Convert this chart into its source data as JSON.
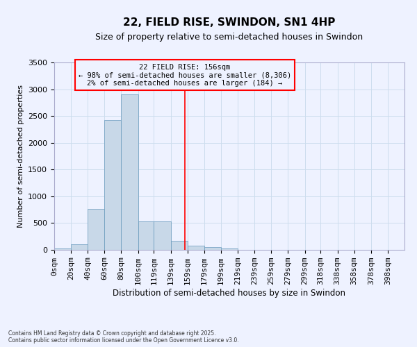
{
  "title1": "22, FIELD RISE, SWINDON, SN1 4HP",
  "title2": "Size of property relative to semi-detached houses in Swindon",
  "xlabel": "Distribution of semi-detached houses by size in Swindon",
  "ylabel": "Number of semi-detached properties",
  "property_size": 156,
  "annotation_line1": "22 FIELD RISE: 156sqm",
  "annotation_line2": "← 98% of semi-detached houses are smaller (8,306)",
  "annotation_line3": "2% of semi-detached houses are larger (184) →",
  "bin_labels": [
    "0sqm",
    "20sqm",
    "40sqm",
    "60sqm",
    "80sqm",
    "100sqm",
    "119sqm",
    "139sqm",
    "159sqm",
    "179sqm",
    "199sqm",
    "219sqm",
    "239sqm",
    "259sqm",
    "279sqm",
    "299sqm",
    "318sqm",
    "338sqm",
    "358sqm",
    "378sqm",
    "398sqm"
  ],
  "bin_edges": [
    0,
    20,
    40,
    60,
    80,
    100,
    119,
    139,
    159,
    179,
    199,
    219,
    239,
    259,
    279,
    299,
    318,
    338,
    358,
    378,
    398
  ],
  "bar_heights": [
    30,
    110,
    770,
    2420,
    2900,
    530,
    530,
    175,
    80,
    55,
    20,
    5,
    0,
    0,
    0,
    0,
    0,
    0,
    0,
    0
  ],
  "bar_color": "#c8d8e8",
  "bar_edge_color": "#6699bb",
  "vline_x": 156,
  "vline_color": "red",
  "ylim": [
    0,
    3500
  ],
  "yticks": [
    0,
    500,
    1000,
    1500,
    2000,
    2500,
    3000,
    3500
  ],
  "grid_color": "#ccddee",
  "background_color": "#eef2ff",
  "title1_fontsize": 11,
  "title2_fontsize": 9,
  "xlabel_fontsize": 8.5,
  "ylabel_fontsize": 8,
  "tick_fontsize": 8,
  "footer_text": "Contains HM Land Registry data © Crown copyright and database right 2025.\nContains public sector information licensed under the Open Government Licence v3.0.",
  "annotation_box_color": "red",
  "annotation_fontsize": 7.5
}
